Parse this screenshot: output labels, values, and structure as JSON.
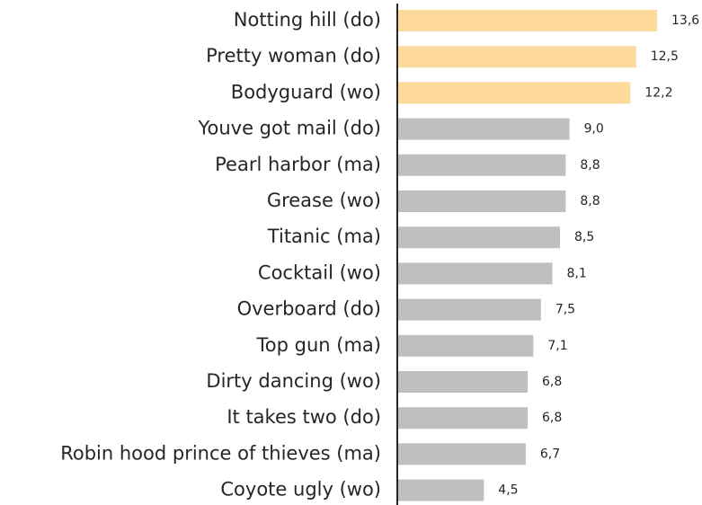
{
  "chart_data": {
    "type": "barh",
    "categories": [
      "Notting hill (do)",
      "Pretty woman (do)",
      "Bodyguard (wo)",
      "Youve got mail (do)",
      "Pearl harbor (ma)",
      "Grease (wo)",
      "Titanic (ma)",
      "Cocktail (wo)",
      "Overboard (do)",
      "Top gun (ma)",
      "Dirty dancing (wo)",
      "It takes two (do)",
      "Robin hood prince of thieves (ma)",
      "Coyote ugly (wo)"
    ],
    "values": [
      13.6,
      12.5,
      12.2,
      9.0,
      8.8,
      8.8,
      8.5,
      8.1,
      7.5,
      7.1,
      6.8,
      6.8,
      6.7,
      4.5
    ],
    "value_labels": [
      "13,6",
      "12,5",
      "12,2",
      "9,0",
      "8,8",
      "8,8",
      "8,5",
      "8,1",
      "7,5",
      "7,1",
      "6,8",
      "6,8",
      "6,7",
      "4,5"
    ],
    "colors": [
      "#fdd99b",
      "#fdd99b",
      "#fdd99b",
      "#bfbfbf",
      "#bfbfbf",
      "#bfbfbf",
      "#bfbfbf",
      "#bfbfbf",
      "#bfbfbf",
      "#bfbfbf",
      "#bfbfbf",
      "#bfbfbf",
      "#bfbfbf",
      "#bfbfbf"
    ]
  }
}
